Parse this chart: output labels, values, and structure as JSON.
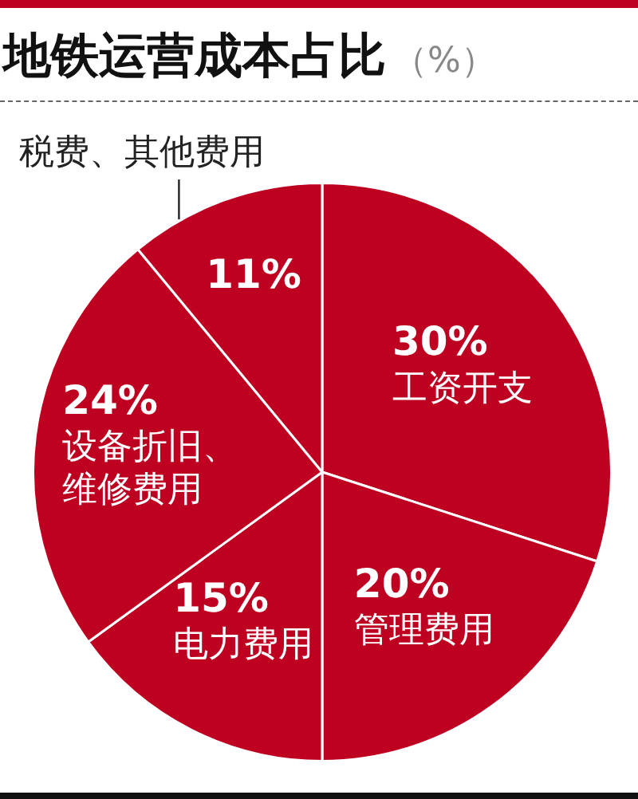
{
  "chart_data": {
    "type": "pie",
    "title": "地铁运营成本占比",
    "subtitle": "（%）",
    "categories": [
      "工资开支",
      "管理费用",
      "电力费用",
      "设备折旧、维修费用",
      "税费、其他费用"
    ],
    "values": [
      30,
      20,
      15,
      24,
      11
    ],
    "colors": [
      "#be0021",
      "#be0021",
      "#be0021",
      "#be0021",
      "#be0021"
    ],
    "value_labels": [
      "30%",
      "20%",
      "15%",
      "24%",
      "11%"
    ],
    "legend": false
  }
}
